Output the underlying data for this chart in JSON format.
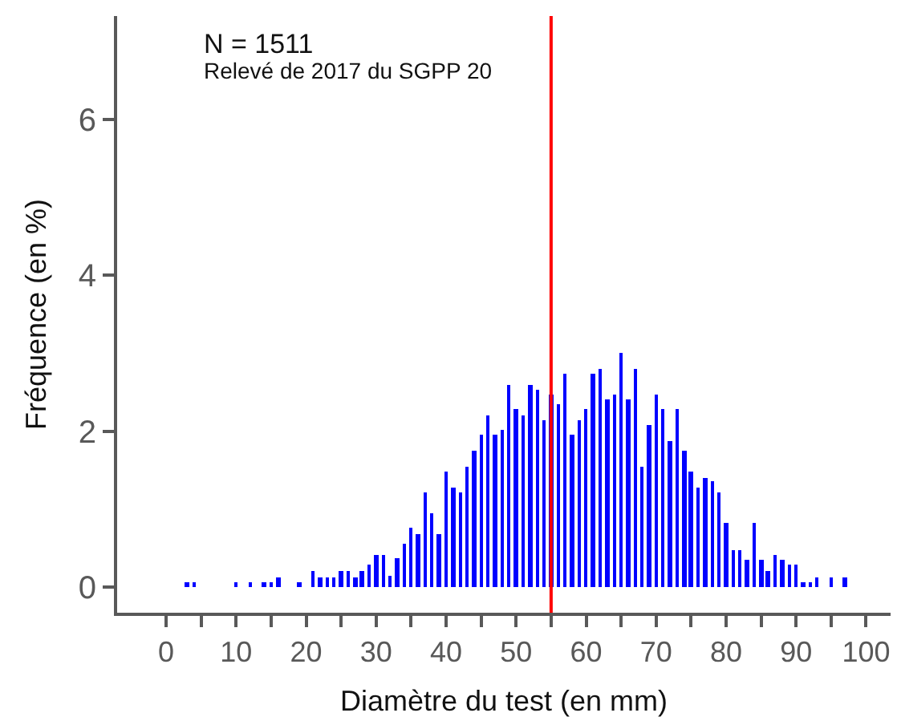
{
  "chart_data": {
    "type": "histogram",
    "xlabel": "Diamètre du test (en mm)",
    "ylabel": "Fréquence (en %)",
    "annotations": [
      "N = 1511",
      "Relevé de 2017 du SGPP 20"
    ],
    "bins": [
      2.5,
      3.5,
      4.5,
      5.5,
      6.5,
      7.5,
      8.5,
      9.5,
      10.5,
      11.5,
      12.5,
      13.5,
      14.5,
      15.5,
      16.5,
      17.5,
      18.5,
      19.5,
      20.5,
      21.5,
      22.5,
      23.5,
      24.5,
      25.5,
      26.5,
      27.5,
      28.5,
      29.5,
      30.5,
      31.5,
      32.5,
      33.5,
      34.5,
      35.5,
      36.5,
      37.5,
      38.5,
      39.5,
      40.5,
      41.5,
      42.5,
      43.5,
      44.5,
      45.5,
      46.5,
      47.5,
      48.5,
      49.5,
      50.5,
      51.5,
      52.5,
      53.5,
      54.5,
      55.5,
      56.5,
      57.5,
      58.5,
      59.5,
      60.5,
      61.5,
      62.5,
      63.5,
      64.5,
      65.5,
      66.5,
      67.5,
      68.5,
      69.5,
      70.5,
      71.5,
      72.5,
      73.5,
      74.5,
      75.5,
      76.5,
      77.5,
      78.5,
      79.5,
      80.5,
      81.5,
      82.5,
      83.5,
      84.5,
      85.5,
      86.5,
      87.5,
      88.5,
      89.5,
      90.5,
      91.5,
      92.5,
      93.5,
      94.5,
      95.5,
      96.5,
      97.5
    ],
    "values": [
      0.07,
      0.07,
      0,
      0,
      0,
      0,
      0,
      0.07,
      0,
      0.07,
      0,
      0.07,
      0.07,
      0.13,
      0,
      0,
      0.07,
      0,
      0.21,
      0.13,
      0.13,
      0.13,
      0.21,
      0.21,
      0.13,
      0.21,
      0.28,
      0.41,
      0.41,
      0.15,
      0.36,
      0.55,
      0.76,
      0.68,
      1.22,
      0.95,
      0.68,
      1.48,
      1.28,
      1.22,
      1.55,
      1.76,
      1.95,
      2.21,
      1.95,
      2.01,
      2.6,
      2.29,
      2.21,
      2.6,
      2.54,
      2.14,
      2.47,
      2.35,
      2.74,
      1.95,
      2.14,
      2.28,
      2.74,
      2.8,
      2.4,
      2.47,
      3.01,
      2.4,
      2.8,
      1.55,
      2.08,
      2.47,
      2.28,
      1.88,
      2.28,
      1.74,
      1.48,
      1.28,
      1.41,
      1.35,
      1.22,
      0.82,
      0.48,
      0.48,
      0.35,
      0.82,
      0.35,
      0.21,
      0.41,
      0.35,
      0.28,
      0.28,
      0.07,
      0.07,
      0.13,
      0,
      0.13,
      0,
      0.13
    ],
    "color": "#0000ff",
    "xlim": [
      -7,
      103.5
    ],
    "xticks": [
      0,
      {
        "value": 5,
        "label": null
      },
      10,
      {
        "value": 15,
        "label": null
      },
      20,
      {
        "value": 25,
        "label": null
      },
      30,
      {
        "value": 35,
        "label": null
      },
      40,
      {
        "value": 45,
        "label": null
      },
      50,
      {
        "value": 55,
        "label": null
      },
      60,
      {
        "value": 65,
        "label": null
      },
      70,
      {
        "value": 75,
        "label": null
      },
      80,
      {
        "value": 85,
        "label": null
      },
      90,
      {
        "value": 95,
        "label": null
      },
      100
    ],
    "ylim": [
      -0.33,
      7.33
    ],
    "yticks": [
      0,
      2,
      4,
      6
    ],
    "ref_lines": [
      {
        "axis": "x",
        "value": 55,
        "color": "#ff0000"
      }
    ]
  }
}
